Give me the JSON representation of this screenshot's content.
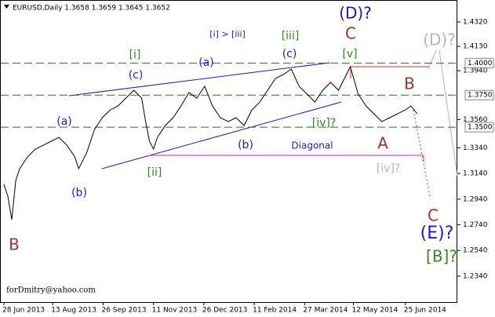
{
  "chart_data": {
    "type": "line",
    "title": "EURUSD,Daily  1.3658 1.3659 1.3645 1.3652",
    "x": [
      0,
      2.5,
      5,
      7.5,
      10,
      15,
      20,
      25,
      30,
      35,
      40,
      45,
      47.5,
      52.5,
      57.5,
      62.5,
      67.5,
      72.5,
      77.5,
      82.5,
      87.5,
      90,
      92.5,
      95,
      97.5,
      102.5,
      107.5,
      112.5,
      117.5,
      122.5,
      127.5,
      132.5,
      137.5,
      142.5,
      147.5,
      152.5,
      157.5,
      162.5,
      167.5,
      172.5,
      177.5,
      182.5,
      187.5,
      192.5,
      197.5,
      202.5,
      207.5,
      212.5,
      217.5,
      220,
      225,
      230,
      235,
      240,
      245,
      250,
      255,
      258.5,
      262.5
    ],
    "series": [
      {
        "name": "EURUSD",
        "color": "#000000",
        "values": [
          1.3055,
          1.2963,
          1.278,
          1.3085,
          1.3177,
          1.3269,
          1.333,
          1.336,
          1.3391,
          1.3421,
          1.336,
          1.3269,
          1.3177,
          1.3299,
          1.3482,
          1.3574,
          1.3635,
          1.3666,
          1.3727,
          1.3788,
          1.3727,
          1.3544,
          1.3391,
          1.333,
          1.3421,
          1.3513,
          1.3574,
          1.3666,
          1.377,
          1.3727,
          1.3819,
          1.3666,
          1.3574,
          1.3544,
          1.3574,
          1.3513,
          1.3635,
          1.3696,
          1.3788,
          1.388,
          1.391,
          1.3953,
          1.3819,
          1.3758,
          1.3696,
          1.3788,
          1.3849,
          1.3788,
          1.391,
          1.3971,
          1.3758,
          1.3666,
          1.3605,
          1.3544,
          1.3574,
          1.3605,
          1.3635,
          1.3666,
          1.3605
        ]
      }
    ],
    "xlim": [
      0,
      290
    ],
    "xticks": [
      {
        "value": 0,
        "label": "28 Jun 2013"
      },
      {
        "value": 31,
        "label": "13 Aug 2013"
      },
      {
        "value": 63,
        "label": "26 Sep 2013"
      },
      {
        "value": 95,
        "label": "11 Nov 2013"
      },
      {
        "value": 127,
        "label": "26 Dec 2013"
      },
      {
        "value": 159,
        "label": "11 Feb 2014"
      },
      {
        "value": 191,
        "label": "27 Mar 2014"
      },
      {
        "value": 222,
        "label": "12 May 2014"
      },
      {
        "value": 255,
        "label": "25 Jun 2014"
      }
    ],
    "ylim": [
      1.2138,
      1.4491
    ],
    "yticks": [
      {
        "value": 1.432,
        "label": "1.4320"
      },
      {
        "value": 1.413,
        "label": "1.4130"
      },
      {
        "value": 1.394,
        "label": "1.3940"
      },
      {
        "value": 1.356,
        "label": "1.3560"
      },
      {
        "value": 1.334,
        "label": "1.3340"
      },
      {
        "value": 1.314,
        "label": "1.3140"
      },
      {
        "value": 1.294,
        "label": "1.2940"
      },
      {
        "value": 1.274,
        "label": "1.2740"
      },
      {
        "value": 1.254,
        "label": "1.2540"
      },
      {
        "value": 1.234,
        "label": "1.2340"
      }
    ],
    "levels": [
      {
        "value": 1.4,
        "label": "1.4000"
      },
      {
        "value": 1.375,
        "label": "1.3750"
      },
      {
        "value": 1.35,
        "label": "1.3500"
      }
    ],
    "level_color": "#1e7a1e",
    "annotations": [
      {
        "text": "(D)?",
        "color": "#1a1aa8"
      },
      {
        "text": "[i] > [iii]",
        "color": "#1a1ad0"
      },
      {
        "text": "[iii]",
        "color": "#2f8a1a"
      },
      {
        "text": "C",
        "color": "#a0322a"
      },
      {
        "text": "(D)?",
        "color": "#b4b4b4"
      },
      {
        "text": "[i]",
        "color": "#2f8a1a"
      },
      {
        "text": "(a)",
        "color": "#1a1ad0"
      },
      {
        "text": "(c)",
        "color": "#1a1ad0"
      },
      {
        "text": "[v]",
        "color": "#2f8a1a"
      },
      {
        "text": "B",
        "color": "#a0322a"
      },
      {
        "text": "(c)",
        "color": "#1a1ad0"
      },
      {
        "text": "(a)",
        "color": "#1a1ad0"
      },
      {
        "text": "[iv]?",
        "color": "#2f8a1a"
      },
      {
        "text": "(b)",
        "color": "#1a1ad0"
      },
      {
        "text": "Diagonal",
        "color": "#1a1ad0"
      },
      {
        "text": "A",
        "color": "#a0322a"
      },
      {
        "text": "[ii]",
        "color": "#2f8a1a"
      },
      {
        "text": "[iv]?",
        "color": "#b4b4b4"
      },
      {
        "text": "(b)",
        "color": "#1a1ad0"
      },
      {
        "text": "C",
        "color": "#a0322a"
      },
      {
        "text": "B",
        "color": "#a0322a"
      },
      {
        "text": "(E)?",
        "color": "#1a1ad0"
      },
      {
        "text": "[B]?",
        "color": "#2f8a1a"
      },
      {
        "text": "forDmitry@yahoo.com",
        "color": "#000000"
      }
    ]
  }
}
